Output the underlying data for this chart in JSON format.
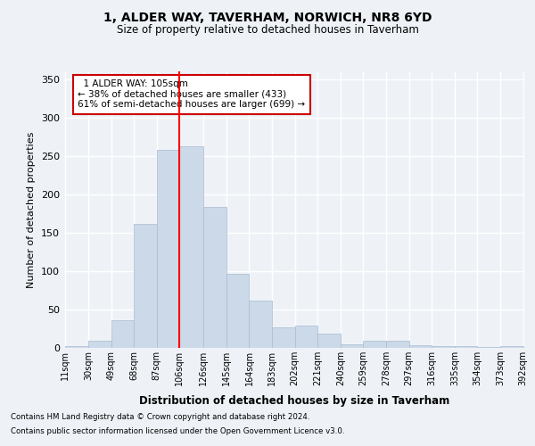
{
  "title": "1, ALDER WAY, TAVERHAM, NORWICH, NR8 6YD",
  "subtitle": "Size of property relative to detached houses in Taverham",
  "xlabel": "Distribution of detached houses by size in Taverham",
  "ylabel": "Number of detached properties",
  "bar_color": "#ccd9e8",
  "bar_edgecolor": "#aabbd0",
  "redline_x": 106,
  "annotation_line1": "1 ALDER WAY: 105sqm",
  "annotation_line2": "← 38% of detached houses are smaller (433)",
  "annotation_line3": "61% of semi-detached houses are larger (699) →",
  "bin_edges": [
    11,
    30,
    49,
    68,
    87,
    106,
    126,
    145,
    164,
    183,
    202,
    221,
    240,
    259,
    278,
    297,
    316,
    335,
    354,
    373,
    392
  ],
  "bar_heights": [
    2,
    9,
    36,
    162,
    258,
    263,
    184,
    96,
    62,
    27,
    29,
    19,
    5,
    9,
    9,
    4,
    2,
    2,
    1,
    2
  ],
  "ylim": [
    0,
    360
  ],
  "yticks": [
    0,
    50,
    100,
    150,
    200,
    250,
    300,
    350
  ],
  "footnote1": "Contains HM Land Registry data © Crown copyright and database right 2024.",
  "footnote2": "Contains public sector information licensed under the Open Government Licence v3.0.",
  "background_color": "#eef2f7",
  "plot_bg_color": "#eef2f7",
  "grid_color": "#ffffff",
  "annotation_box_facecolor": "#ffffff",
  "annotation_box_edgecolor": "#cc0000"
}
